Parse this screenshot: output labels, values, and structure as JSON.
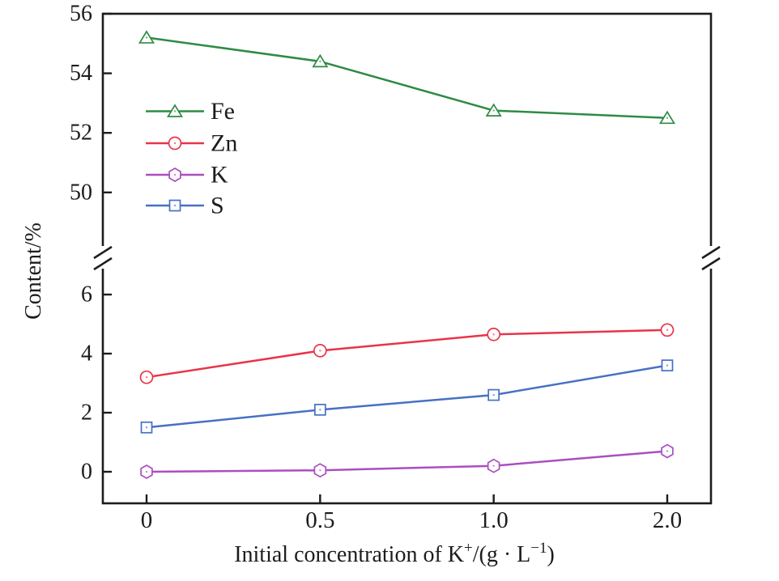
{
  "chart_data": {
    "type": "line",
    "title": "",
    "ylabel": "Content/%",
    "xlabel_parts": [
      {
        "text": "Initial concentration of K"
      },
      {
        "text": "+",
        "sup": true
      },
      {
        "text": "/(g · L"
      },
      {
        "text": "−1",
        "sup": true
      },
      {
        "text": ")"
      }
    ],
    "x_tick_labels": [
      "0",
      "0.5",
      "1.0",
      "2.0"
    ],
    "x_values": [
      0,
      0.5,
      1.0,
      2.0
    ],
    "axis_break": {
      "style": "double-slash",
      "upper_segment": {
        "range": [
          48,
          56
        ],
        "ticks": [
          50,
          52,
          54,
          56
        ]
      },
      "lower_segment": {
        "range": [
          -1.1,
          7.4
        ],
        "ticks": [
          0,
          2,
          4,
          6
        ]
      }
    },
    "grid": "off",
    "legend": {
      "position": "inside-upper-left",
      "entries": [
        "Fe",
        "Zn",
        "K",
        "S"
      ]
    },
    "series": [
      {
        "name": "Fe",
        "segment": "upper",
        "marker": "triangle",
        "color": "#2e8b44",
        "values": [
          55.2,
          54.4,
          52.75,
          52.5
        ]
      },
      {
        "name": "Zn",
        "segment": "lower",
        "marker": "circle",
        "color": "#e93448",
        "values": [
          3.2,
          4.1,
          4.65,
          4.8
        ]
      },
      {
        "name": "K",
        "segment": "lower",
        "marker": "hexagon",
        "color": "#ab4ec0",
        "values": [
          0.0,
          0.05,
          0.2,
          0.7
        ]
      },
      {
        "name": "S",
        "segment": "lower",
        "marker": "square",
        "color": "#4671c4",
        "values": [
          1.5,
          2.1,
          2.6,
          3.6
        ]
      }
    ],
    "frame_color": "#1c1c1c",
    "marker_fill": "#ffffff"
  }
}
